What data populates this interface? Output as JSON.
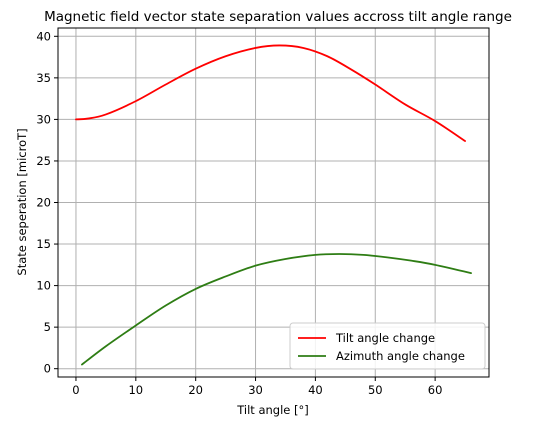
{
  "chart_data": {
    "type": "line",
    "title": "Magnetic field vector state separation values accross tilt angle range",
    "xlabel": "Tilt angle [°]",
    "ylabel": "State seperation [microT]",
    "xlim": [
      -3,
      69
    ],
    "ylim": [
      -1,
      41
    ],
    "xticks": [
      "0",
      "10",
      "20",
      "30",
      "40",
      "50",
      "60"
    ],
    "yticks": [
      "0",
      "5",
      "10",
      "15",
      "20",
      "25",
      "30",
      "35",
      "40"
    ],
    "grid": true,
    "legend_position": "bottom-right",
    "series": [
      {
        "name": "Tilt angle change",
        "color": "#ff0000",
        "x": [
          0,
          2,
          5,
          10,
          15,
          20,
          25,
          30,
          34,
          38,
          42,
          46,
          50,
          55,
          60,
          65
        ],
        "y": [
          30.0,
          30.1,
          30.6,
          32.2,
          34.2,
          36.1,
          37.6,
          38.6,
          38.9,
          38.6,
          37.6,
          36.0,
          34.2,
          31.8,
          29.8,
          27.4
        ]
      },
      {
        "name": "Azimuth angle change",
        "color": "#2e7d14",
        "x": [
          1,
          5,
          10,
          15,
          20,
          25,
          30,
          35,
          40,
          44,
          48,
          52,
          56,
          60,
          66
        ],
        "y": [
          0.5,
          2.7,
          5.2,
          7.6,
          9.6,
          11.1,
          12.4,
          13.2,
          13.7,
          13.8,
          13.7,
          13.4,
          13.0,
          12.5,
          11.5
        ]
      }
    ]
  }
}
